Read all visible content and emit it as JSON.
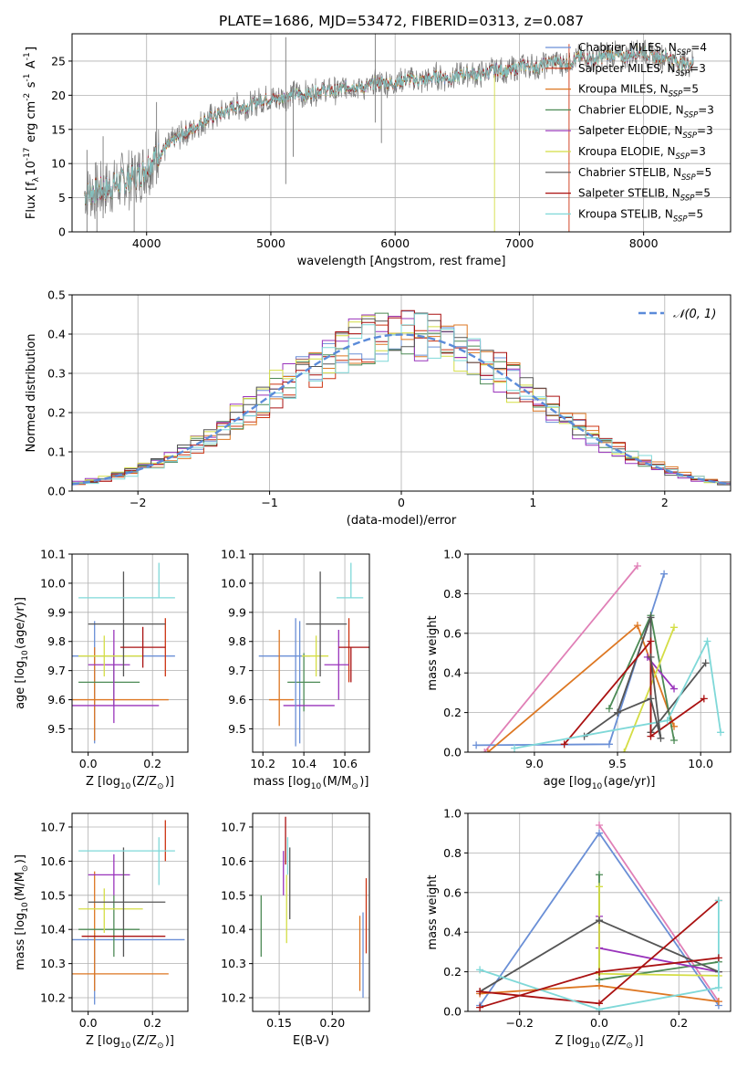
{
  "colors": {
    "Chabrier MILES": "#6a8fd6",
    "Salpeter MILES": "#cc3311",
    "Kroupa MILES": "#dd7722",
    "Chabrier ELODIE": "#4c8a55",
    "Salpeter ELODIE": "#9933bb",
    "Kroupa ELODIE": "#d4dd44",
    "Chabrier STELIB": "#555555",
    "Salpeter STELIB": "#aa1111",
    "Kroupa STELIB": "#7fd8d8",
    "gauss": "#5b8bd9",
    "pink": "#e07fb6"
  },
  "chart_data": [
    {
      "id": "spectrum",
      "type": "line",
      "title": "PLATE=1686, MJD=53472, FIBERID=0313, z=0.087",
      "xlabel": "wavelength [Angstrom, rest frame]",
      "ylabel": "Flux [f$_\\lambda$10$^{-17}$ erg cm$^{-2}$ s$^{-1}$ A$^{-1}$]",
      "xlim": [
        3400,
        8700
      ],
      "ylim": [
        0,
        29
      ],
      "xticks": [
        4000,
        5000,
        6000,
        7000,
        8000
      ],
      "yticks": [
        0,
        5,
        10,
        15,
        20,
        25
      ],
      "legend": [
        {
          "name": "Chabrier MILES",
          "nssp": "4"
        },
        {
          "name": "Salpeter MILES",
          "nssp": "3"
        },
        {
          "name": "Kroupa MILES",
          "nssp": "5"
        },
        {
          "name": "Chabrier ELODIE",
          "nssp": "3"
        },
        {
          "name": "Salpeter ELODIE",
          "nssp": "3"
        },
        {
          "name": "Kroupa ELODIE",
          "nssp": "3"
        },
        {
          "name": "Chabrier STELIB",
          "nssp": "5"
        },
        {
          "name": "Salpeter STELIB",
          "nssp": "5"
        },
        {
          "name": "Kroupa STELIB",
          "nssp": "5"
        }
      ],
      "continuum": {
        "x": [
          3500,
          3700,
          3950,
          4100,
          4300,
          4600,
          5000,
          5500,
          6000,
          6500,
          7000,
          7500,
          8000,
          8400
        ],
        "y": [
          5.5,
          6.5,
          8.5,
          11.5,
          14.5,
          17.5,
          19.5,
          20.8,
          22,
          22.8,
          24,
          25.3,
          26.2,
          24.5
        ]
      },
      "spikes": [
        {
          "x": 3520,
          "y0": 0,
          "y1": 12
        },
        {
          "x": 3600,
          "y0": 0,
          "y1": 6.5
        },
        {
          "x": 3650,
          "y0": 2,
          "y1": 14
        },
        {
          "x": 3900,
          "y0": 0,
          "y1": 9
        },
        {
          "x": 4080,
          "y0": 7,
          "y1": 19
        },
        {
          "x": 5120,
          "y0": 7,
          "y1": 28.5
        },
        {
          "x": 5180,
          "y0": 11,
          "y1": 22
        },
        {
          "x": 5840,
          "y0": 16,
          "y1": 29
        },
        {
          "x": 5890,
          "y0": 13,
          "y1": 22
        },
        {
          "x": 6800,
          "y0": 0,
          "y1": 23
        },
        {
          "x": 7400,
          "y0": 0,
          "y1": 27.5
        }
      ]
    },
    {
      "id": "residuals",
      "type": "histogram",
      "xlabel": "(data-model)/error",
      "ylabel": "Normed distribution",
      "xlim": [
        -2.5,
        2.5
      ],
      "ylim": [
        0,
        0.5
      ],
      "xticks": [
        -2,
        -1,
        0,
        1,
        2
      ],
      "yticks": [
        0.0,
        0.1,
        0.2,
        0.3,
        0.4,
        0.5
      ],
      "legend": "$\\mathcal{N}(0, 1)$",
      "bin_width": 0.1
    },
    {
      "id": "p_age_z",
      "type": "scatter",
      "xlabel": "Z [log$_{10}$(Z/Z$_\\odot$)]",
      "ylabel": "age  [log$_{10}$(age/yr)]",
      "xlim": [
        -0.05,
        0.31
      ],
      "ylim": [
        9.42,
        10.1
      ],
      "xticks": [
        0.0,
        0.2
      ],
      "yticks": [
        9.5,
        9.6,
        9.7,
        9.8,
        9.9,
        10.0,
        10.1
      ],
      "points": [
        {
          "m": "Chabrier MILES",
          "x": 0.02,
          "y": 9.75,
          "xe": [
            0.22,
            0.25
          ],
          "ye": [
            0.3,
            0.12
          ]
        },
        {
          "m": "Salpeter MILES",
          "x": 0.24,
          "y": 9.78,
          "xe": [
            0,
            0
          ],
          "ye": [
            0.1,
            0.1
          ]
        },
        {
          "m": "Kroupa MILES",
          "x": 0.02,
          "y": 9.6,
          "xe": [
            0.07,
            0.23
          ],
          "ye": [
            0.14,
            0.18
          ]
        },
        {
          "m": "Chabrier ELODIE",
          "x": 0.08,
          "y": 9.66,
          "xe": [
            0.11,
            0.08
          ],
          "ye": [
            0.08,
            0.1
          ]
        },
        {
          "m": "Salpeter ELODIE",
          "x": 0.08,
          "y": 9.72,
          "xe": [
            0.08,
            0.05
          ],
          "ye": [
            0.2,
            0.12
          ]
        },
        {
          "m": "Kroupa ELODIE",
          "x": 0.05,
          "y": 9.75,
          "xe": [
            0.08,
            0.12
          ],
          "ye": [
            0.07,
            0.07
          ]
        },
        {
          "m": "Chabrier STELIB",
          "x": 0.11,
          "y": 9.86,
          "xe": [
            0.11,
            0.13
          ],
          "ye": [
            0.18,
            0.18
          ]
        },
        {
          "m": "Salpeter STELIB",
          "x": 0.17,
          "y": 9.78,
          "xe": [
            0.07,
            0.07
          ],
          "ye": [
            0.07,
            0.07
          ]
        },
        {
          "m": "Kroupa STELIB",
          "x": 0.22,
          "y": 9.95,
          "xe": [
            0.25,
            0.05
          ],
          "ye": [
            0.0,
            0.12
          ]
        },
        {
          "m": "Salpeter ELODIE",
          "x": 0.1,
          "y": 9.58,
          "xe": [
            0.17,
            0.12
          ],
          "ye": [
            0,
            0
          ]
        }
      ]
    },
    {
      "id": "p_age_mass",
      "type": "scatter",
      "xlabel": "mass [log$_{10}$(M/M$_\\odot$)]",
      "ylabel": "",
      "xlim": [
        10.15,
        10.72
      ],
      "ylim": [
        9.42,
        10.1
      ],
      "xticks": [
        10.2,
        10.4,
        10.6
      ],
      "yticks": [
        9.5,
        9.6,
        9.7,
        9.8,
        9.9,
        10.0,
        10.1
      ],
      "points": [
        {
          "m": "Chabrier MILES",
          "x": 10.38,
          "y": 9.75,
          "xe": [
            0.2,
            0.05
          ],
          "ye": [
            0.3,
            0.12
          ]
        },
        {
          "m": "Salpeter MILES",
          "x": 10.62,
          "y": 9.78,
          "xe": [
            0,
            0
          ],
          "ye": [
            0.12,
            0.1
          ]
        },
        {
          "m": "Kroupa MILES",
          "x": 10.28,
          "y": 9.6,
          "xe": [
            0.05,
            0.07
          ],
          "ye": [
            0.09,
            0.24
          ]
        },
        {
          "m": "Chabrier ELODIE",
          "x": 10.4,
          "y": 9.66,
          "xe": [
            0.08,
            0.08
          ],
          "ye": [
            0.1,
            0.1
          ]
        },
        {
          "m": "Salpeter ELODIE",
          "x": 10.57,
          "y": 9.72,
          "xe": [
            0.07,
            0.05
          ],
          "ye": [
            0.12,
            0.12
          ]
        },
        {
          "m": "Kroupa ELODIE",
          "x": 10.46,
          "y": 9.75,
          "xe": [
            0.07,
            0.06
          ],
          "ye": [
            0.07,
            0.07
          ]
        },
        {
          "m": "Chabrier STELIB",
          "x": 10.48,
          "y": 9.86,
          "xe": [
            0.07,
            0.13
          ],
          "ye": [
            0.18,
            0.18
          ]
        },
        {
          "m": "Salpeter STELIB",
          "x": 10.63,
          "y": 9.78,
          "xe": [
            0.06,
            0.1
          ],
          "ye": [
            0.12,
            0
          ]
        },
        {
          "m": "Kroupa STELIB",
          "x": 10.63,
          "y": 9.95,
          "xe": [
            0.07,
            0.06
          ],
          "ye": [
            0.0,
            0.12
          ]
        },
        {
          "m": "Salpeter ELODIE",
          "x": 10.38,
          "y": 9.58,
          "xe": [
            0.08,
            0.17
          ],
          "ye": [
            0,
            0
          ]
        },
        {
          "m": "Chabrier MILES",
          "x": 10.36,
          "y": 9.86,
          "xe": [
            0,
            0
          ],
          "ye": [
            0.42,
            0.02
          ]
        }
      ]
    },
    {
      "id": "p_weight_age",
      "type": "line",
      "xlabel": "age  [log$_{10}$(age/yr)]",
      "ylabel": "mass weight",
      "xlim": [
        8.6,
        10.18
      ],
      "ylim": [
        0,
        1.0
      ],
      "xticks": [
        9.0,
        9.5,
        10.0
      ],
      "yticks": [
        0.0,
        0.2,
        0.4,
        0.6,
        0.8,
        1.0
      ],
      "series": [
        {
          "m": "pink",
          "x": [
            8.7,
            9.62
          ],
          "y": [
            0.0,
            0.94
          ]
        },
        {
          "m": "Chabrier MILES",
          "x": [
            8.65,
            9.45,
            9.78
          ],
          "y": [
            0.035,
            0.04,
            0.9
          ]
        },
        {
          "m": "Kroupa MILES",
          "x": [
            8.72,
            9.62,
            9.84
          ],
          "y": [
            0.0,
            0.64,
            0.13
          ]
        },
        {
          "m": "Chabrier ELODIE",
          "x": [
            9.45,
            9.7,
            9.84
          ],
          "y": [
            0.22,
            0.69,
            0.06
          ]
        },
        {
          "m": "Salpeter ELODIE",
          "x": [
            9.68,
            9.84
          ],
          "y": [
            0.48,
            0.32
          ]
        },
        {
          "m": "Kroupa ELODIE",
          "x": [
            9.54,
            9.84
          ],
          "y": [
            0.0,
            0.63
          ]
        },
        {
          "m": "Chabrier STELIB",
          "x": [
            9.3,
            9.5,
            9.7,
            9.7,
            10.03
          ],
          "y": [
            0.08,
            0.2,
            0.68,
            0.1,
            0.45
          ]
        },
        {
          "m": "Salpeter STELIB",
          "x": [
            9.18,
            9.7,
            9.7,
            10.02
          ],
          "y": [
            0.04,
            0.56,
            0.08,
            0.27
          ]
        },
        {
          "m": "Kroupa STELIB",
          "x": [
            8.88,
            9.8,
            10.04,
            10.12
          ],
          "y": [
            0.02,
            0.16,
            0.56,
            0.1
          ]
        },
        {
          "m": "Chabrier STELIB",
          "x": [
            9.5,
            9.7,
            9.76,
            9.7
          ],
          "y": [
            0.2,
            0.27,
            0.07,
            0.48
          ]
        }
      ]
    },
    {
      "id": "p_mass_z",
      "type": "scatter",
      "xlabel": "Z [log$_{10}$(Z/Z$_\\odot$)]",
      "ylabel": "mass [log$_{10}$(M/M$_\\odot$)]",
      "xlim": [
        -0.05,
        0.31
      ],
      "ylim": [
        10.16,
        10.74
      ],
      "xticks": [
        0.0,
        0.2
      ],
      "yticks": [
        10.2,
        10.3,
        10.4,
        10.5,
        10.6,
        10.7
      ],
      "points": [
        {
          "m": "Chabrier MILES",
          "x": 0.02,
          "y": 10.37,
          "xe": [
            0.07,
            0.28
          ],
          "ye": [
            0.19,
            0.02
          ]
        },
        {
          "m": "Salpeter MILES",
          "x": 0.24,
          "y": 10.66,
          "xe": [
            0,
            0
          ],
          "ye": [
            0.06,
            0.06
          ]
        },
        {
          "m": "Kroupa MILES",
          "x": 0.02,
          "y": 10.27,
          "xe": [
            0.07,
            0.23
          ],
          "ye": [
            0.05,
            0.3
          ]
        },
        {
          "m": "Chabrier ELODIE",
          "x": 0.08,
          "y": 10.4,
          "xe": [
            0.11,
            0.08
          ],
          "ye": [
            0.08,
            0.1
          ]
        },
        {
          "m": "Salpeter ELODIE",
          "x": 0.08,
          "y": 10.56,
          "xe": [
            0.08,
            0.05
          ],
          "ye": [
            0.06,
            0.06
          ]
        },
        {
          "m": "Kroupa ELODIE",
          "x": 0.05,
          "y": 10.46,
          "xe": [
            0.08,
            0.12
          ],
          "ye": [
            0.07,
            0.06
          ]
        },
        {
          "m": "Chabrier STELIB",
          "x": 0.11,
          "y": 10.48,
          "xe": [
            0.11,
            0.13
          ],
          "ye": [
            0.16,
            0.16
          ]
        },
        {
          "m": "Kroupa STELIB",
          "x": 0.22,
          "y": 10.63,
          "xe": [
            0.25,
            0.05
          ],
          "ye": [
            0.1,
            0.04
          ]
        },
        {
          "m": "Salpeter STELIB",
          "x": 0.14,
          "y": 10.38,
          "xe": [
            0.16,
            0.1
          ],
          "ye": [
            0,
            0
          ]
        }
      ]
    },
    {
      "id": "p_mass_ebv",
      "type": "scatter",
      "xlabel": "E(B-V)",
      "ylabel": "",
      "xlim": [
        0.125,
        0.235
      ],
      "ylim": [
        10.16,
        10.74
      ],
      "xticks": [
        0.15,
        0.2
      ],
      "yticks": [
        10.2,
        10.3,
        10.4,
        10.5,
        10.6,
        10.7
      ],
      "points": [
        {
          "m": "Chabrier ELODIE",
          "x": 0.133,
          "y": 10.4,
          "xe": [
            0,
            0
          ],
          "ye": [
            0.08,
            0.1
          ]
        },
        {
          "m": "Salpeter ELODIE",
          "x": 0.154,
          "y": 10.56,
          "xe": [
            0,
            0
          ],
          "ye": [
            0.06,
            0.07
          ]
        },
        {
          "m": "Salpeter STELIB",
          "x": 0.156,
          "y": 10.66,
          "xe": [
            0,
            0
          ],
          "ye": [
            0.07,
            0.07
          ]
        },
        {
          "m": "Kroupa ELODIE",
          "x": 0.157,
          "y": 10.46,
          "xe": [
            0,
            0
          ],
          "ye": [
            0.1,
            0.1
          ]
        },
        {
          "m": "Kroupa STELIB",
          "x": 0.158,
          "y": 10.63,
          "xe": [
            0,
            0
          ],
          "ye": [
            0.07,
            0.04
          ]
        },
        {
          "m": "Chabrier STELIB",
          "x": 0.16,
          "y": 10.53,
          "xe": [
            0,
            0
          ],
          "ye": [
            0.1,
            0.11
          ]
        },
        {
          "m": "Kroupa MILES",
          "x": 0.226,
          "y": 10.33,
          "xe": [
            0,
            0
          ],
          "ye": [
            0.11,
            0.11
          ]
        },
        {
          "m": "Chabrier MILES",
          "x": 0.229,
          "y": 10.32,
          "xe": [
            0,
            0
          ],
          "ye": [
            0.12,
            0.13
          ]
        },
        {
          "m": "Salpeter MILES",
          "x": 0.232,
          "y": 10.44,
          "xe": [
            0,
            0
          ],
          "ye": [
            0.11,
            0.11
          ]
        }
      ]
    },
    {
      "id": "p_weight_z",
      "type": "line",
      "xlabel": "Z [log$_{10}$(Z/Z$_\\odot$)]",
      "ylabel": "mass weight",
      "xlim": [
        -0.33,
        0.33
      ],
      "ylim": [
        0,
        1.0
      ],
      "xticks": [
        -0.2,
        0.0,
        0.2
      ],
      "yticks": [
        0.0,
        0.2,
        0.4,
        0.6,
        0.8,
        1.0
      ],
      "series": [
        {
          "m": "pink",
          "x": [
            0.0,
            0.3
          ],
          "y": [
            0.94,
            0.05
          ]
        },
        {
          "m": "Chabrier MILES",
          "x": [
            -0.3,
            0.0,
            0.3
          ],
          "y": [
            0.03,
            0.9,
            0.03
          ]
        },
        {
          "m": "Kroupa MILES",
          "x": [
            -0.3,
            0.0,
            0.3
          ],
          "y": [
            0.09,
            0.13,
            0.05
          ]
        },
        {
          "m": "Chabrier ELODIE",
          "x": [
            0.0,
            0.0,
            0.3
          ],
          "y": [
            0.69,
            0.16,
            0.25
          ]
        },
        {
          "m": "Salpeter ELODIE",
          "x": [
            0.0,
            0.0,
            0.3
          ],
          "y": [
            0.48,
            0.32,
            0.2
          ]
        },
        {
          "m": "Kroupa ELODIE",
          "x": [
            0.0,
            0.0,
            0.3
          ],
          "y": [
            0.63,
            0.19,
            0.18
          ]
        },
        {
          "m": "Chabrier STELIB",
          "x": [
            -0.3,
            0.0,
            0.3
          ],
          "y": [
            0.1,
            0.46,
            0.2
          ]
        },
        {
          "m": "Salpeter STELIB",
          "x": [
            -0.3,
            0.0,
            0.3
          ],
          "y": [
            0.1,
            0.04,
            0.56
          ]
        },
        {
          "m": "Kroupa STELIB",
          "x": [
            -0.3,
            0.0,
            0.3,
            0.3
          ],
          "y": [
            0.21,
            0.01,
            0.12,
            0.56
          ]
        },
        {
          "m": "Salpeter STELIB",
          "x": [
            -0.3,
            0.0,
            0.3
          ],
          "y": [
            0.02,
            0.2,
            0.27
          ]
        }
      ]
    }
  ]
}
